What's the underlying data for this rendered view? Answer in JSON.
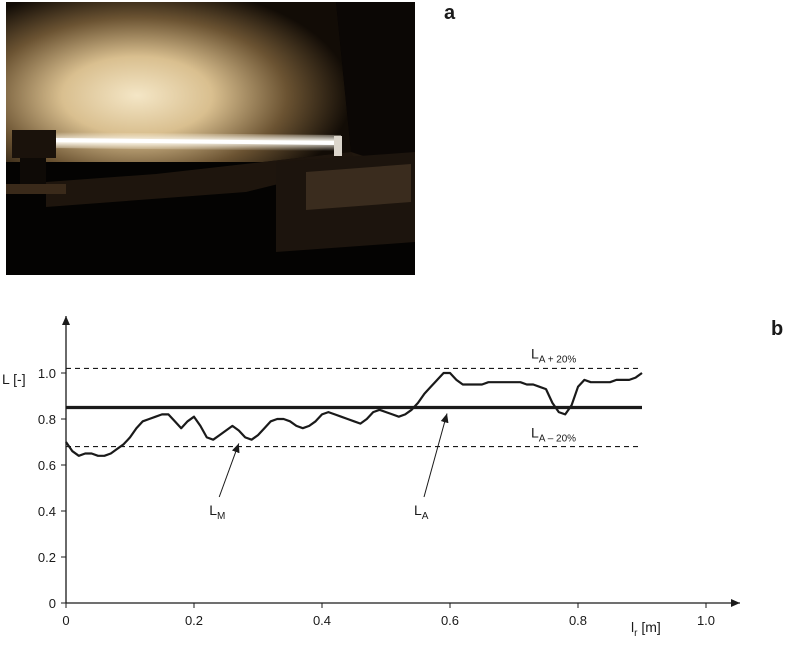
{
  "panels": {
    "a": "a",
    "b": "b"
  },
  "photo": {
    "description_icon": "lit-fluorescent-tube-photo",
    "colors": {
      "background": "#000000",
      "wall_glow": "#f2dfb8",
      "tube": "#fffaf0"
    }
  },
  "chart_data": {
    "type": "line",
    "xlim": [
      0,
      1.0
    ],
    "ylim": [
      0,
      1.1
    ],
    "x_ticks": [
      0,
      0.2,
      0.4,
      0.6,
      0.8,
      1.0
    ],
    "x_tick_labels": [
      "0",
      "0.2",
      "0.4",
      "0.6",
      "0.8",
      "1.0"
    ],
    "y_ticks": [
      0,
      0.2,
      0.4,
      0.6,
      0.8,
      1.0
    ],
    "y_tick_labels": [
      "0",
      "0.2",
      "0.4",
      "0.6",
      "0.8",
      "1.0"
    ],
    "ylabel": "L [-]",
    "xlabel": {
      "main": "l",
      "sub": "r",
      "unit": " [m]"
    },
    "grid": false,
    "series": [
      {
        "name": "L_M",
        "style": "solid-thin",
        "x": [
          0,
          0.01,
          0.02,
          0.03,
          0.04,
          0.05,
          0.06,
          0.07,
          0.08,
          0.09,
          0.1,
          0.11,
          0.12,
          0.13,
          0.14,
          0.15,
          0.16,
          0.17,
          0.18,
          0.19,
          0.2,
          0.21,
          0.22,
          0.23,
          0.24,
          0.25,
          0.26,
          0.27,
          0.28,
          0.29,
          0.3,
          0.31,
          0.32,
          0.33,
          0.34,
          0.35,
          0.36,
          0.37,
          0.38,
          0.39,
          0.4,
          0.41,
          0.42,
          0.43,
          0.44,
          0.45,
          0.46,
          0.47,
          0.48,
          0.49,
          0.5,
          0.51,
          0.52,
          0.53,
          0.54,
          0.55,
          0.56,
          0.57,
          0.58,
          0.59,
          0.6,
          0.61,
          0.62,
          0.63,
          0.64,
          0.65,
          0.66,
          0.67,
          0.68,
          0.69,
          0.7,
          0.71,
          0.72,
          0.73,
          0.74,
          0.75,
          0.76,
          0.77,
          0.78,
          0.79,
          0.8,
          0.81,
          0.82,
          0.83,
          0.84,
          0.85,
          0.86,
          0.87,
          0.88,
          0.89,
          0.9
        ],
        "y": [
          0.7,
          0.66,
          0.64,
          0.65,
          0.65,
          0.64,
          0.64,
          0.65,
          0.67,
          0.69,
          0.72,
          0.76,
          0.79,
          0.8,
          0.81,
          0.82,
          0.82,
          0.79,
          0.76,
          0.79,
          0.81,
          0.77,
          0.72,
          0.71,
          0.73,
          0.75,
          0.77,
          0.75,
          0.72,
          0.71,
          0.73,
          0.76,
          0.79,
          0.8,
          0.8,
          0.79,
          0.77,
          0.76,
          0.77,
          0.79,
          0.82,
          0.83,
          0.82,
          0.81,
          0.8,
          0.79,
          0.78,
          0.8,
          0.83,
          0.84,
          0.83,
          0.82,
          0.81,
          0.82,
          0.84,
          0.87,
          0.91,
          0.94,
          0.97,
          1.0,
          1.0,
          0.97,
          0.95,
          0.95,
          0.95,
          0.95,
          0.96,
          0.96,
          0.96,
          0.96,
          0.96,
          0.96,
          0.95,
          0.95,
          0.94,
          0.93,
          0.87,
          0.83,
          0.82,
          0.86,
          0.94,
          0.97,
          0.96,
          0.96,
          0.96,
          0.96,
          0.97,
          0.97,
          0.97,
          0.98,
          1.0
        ]
      },
      {
        "name": "L_A",
        "style": "solid-thick",
        "x": [
          0,
          0.9
        ],
        "y": [
          0.85,
          0.85
        ]
      },
      {
        "name": "L_A+20%",
        "style": "dashed",
        "x": [
          0,
          0.9
        ],
        "y": [
          1.02,
          1.02
        ]
      },
      {
        "name": "L_A-20%",
        "style": "dashed",
        "x": [
          0,
          0.9
        ],
        "y": [
          0.68,
          0.68
        ]
      }
    ],
    "annotations": [
      {
        "main": "L",
        "sub": "M",
        "arrow_to": [
          0.27,
          0.72
        ],
        "anchor": [
          0.23,
          0.4
        ]
      },
      {
        "main": "L",
        "sub": "A",
        "arrow_to": [
          0.6,
          0.85
        ],
        "anchor": [
          0.55,
          0.4
        ]
      },
      {
        "main": "L",
        "sub": "A + 20%",
        "position": "above upper dashed line"
      },
      {
        "main": "L",
        "sub": "A – 20%",
        "position": "below middle line"
      }
    ]
  }
}
